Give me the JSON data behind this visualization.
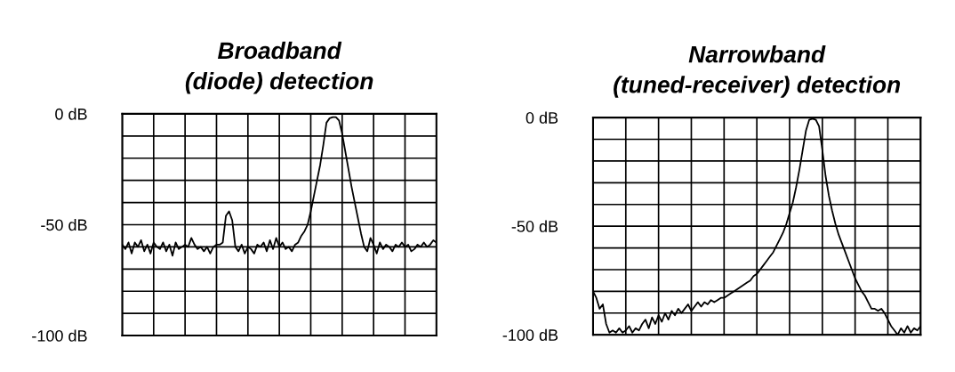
{
  "chart_data": [
    {
      "type": "line",
      "title": "Broadband\n(diode) detection",
      "categories": [
        null,
        null,
        null,
        null,
        null,
        null,
        null,
        null,
        null,
        null,
        null,
        null,
        null,
        null,
        null,
        null,
        null,
        null,
        null,
        null,
        null,
        null,
        null,
        null,
        null,
        null,
        null,
        null,
        null,
        null,
        null,
        null,
        null,
        null,
        null,
        null,
        null,
        null,
        null,
        null,
        null,
        null,
        null,
        null,
        null,
        null,
        null,
        null,
        null,
        null,
        null,
        null,
        null,
        null,
        null,
        null,
        null,
        null,
        null,
        null,
        null,
        null,
        null,
        null,
        null,
        null,
        null,
        null,
        null,
        null,
        null,
        null,
        null,
        null,
        null,
        null,
        null,
        null,
        null,
        null,
        null,
        null,
        null,
        null,
        null,
        null,
        null,
        null,
        null,
        null,
        null,
        null,
        null,
        null,
        null,
        null,
        null,
        null,
        null,
        null,
        null
      ],
      "series": [
        {
          "color": "#000000",
          "values": [
            -59,
            -61,
            -58,
            -63,
            -58,
            -60,
            -57,
            -62,
            -59,
            -63,
            -58,
            -60,
            -61,
            -58,
            -62,
            -59,
            -64,
            -58,
            -61,
            -60,
            -59,
            -60,
            -56,
            -59,
            -61,
            -60,
            -62,
            -60,
            -63,
            -60,
            -59,
            -59,
            -58,
            -46,
            -44,
            -48,
            -60,
            -62,
            -59,
            -63,
            -60,
            -61,
            -63,
            -59,
            -60,
            -58,
            -62,
            -57,
            -61,
            -56,
            -60,
            -58,
            -61,
            -60,
            -62,
            -59,
            -58,
            -55,
            -53,
            -50,
            -44,
            -37,
            -30,
            -23,
            -14,
            -4,
            -2,
            -1.5,
            -1.5,
            -3,
            -9,
            -17,
            -25,
            -33,
            -40,
            -47,
            -54,
            -60,
            -62,
            -56,
            -59,
            -63,
            -58,
            -61,
            -59,
            -60,
            -62,
            -59,
            -60,
            -58,
            -60,
            -59,
            -62,
            -61,
            -59,
            -60,
            -58,
            -60,
            -59,
            -57,
            -58
          ]
        }
      ],
      "ylim": [
        -100,
        0
      ],
      "yticks": [
        {
          "value": 0,
          "label": "0 dB"
        },
        {
          "value": -10,
          "label": null
        },
        {
          "value": -20,
          "label": null
        },
        {
          "value": -30,
          "label": null
        },
        {
          "value": -40,
          "label": null
        },
        {
          "value": -50,
          "label": "-50 dB"
        },
        {
          "value": -60,
          "label": null
        },
        {
          "value": -70,
          "label": null
        },
        {
          "value": -80,
          "label": null
        },
        {
          "value": -90,
          "label": null
        },
        {
          "value": -100,
          "label": "-100 dB"
        }
      ],
      "grid": true,
      "line_style": "solid"
    },
    {
      "type": "line",
      "title": "Narrowband\n(tuned-receiver) detection",
      "categories": [
        null,
        null,
        null,
        null,
        null,
        null,
        null,
        null,
        null,
        null,
        null,
        null,
        null,
        null,
        null,
        null,
        null,
        null,
        null,
        null,
        null,
        null,
        null,
        null,
        null,
        null,
        null,
        null,
        null,
        null,
        null,
        null,
        null,
        null,
        null,
        null,
        null,
        null,
        null,
        null,
        null,
        null,
        null,
        null,
        null,
        null,
        null,
        null,
        null,
        null,
        null,
        null,
        null,
        null,
        null,
        null,
        null,
        null,
        null,
        null,
        null,
        null,
        null,
        null,
        null,
        null,
        null,
        null,
        null,
        null,
        null,
        null,
        null,
        null,
        null,
        null,
        null,
        null,
        null,
        null,
        null,
        null,
        null,
        null,
        null,
        null,
        null,
        null,
        null,
        null,
        null,
        null,
        null,
        null,
        null,
        null,
        null,
        null,
        null,
        null,
        null
      ],
      "series": [
        {
          "color": "#000000",
          "values": [
            -80,
            -83,
            -88,
            -86,
            -95,
            -99,
            -98,
            -99,
            -97,
            -99,
            -98,
            -96,
            -99,
            -97,
            -98,
            -95,
            -93,
            -97,
            -92,
            -95,
            -91,
            -94,
            -90,
            -93,
            -89,
            -91,
            -88,
            -90,
            -88,
            -86,
            -89,
            -87,
            -85,
            -87,
            -85,
            -86,
            -84,
            -85,
            -84,
            -83,
            -83,
            -82,
            -81,
            -80,
            -79,
            -78,
            -77,
            -76,
            -75,
            -73,
            -72,
            -70,
            -68,
            -66,
            -64,
            -62,
            -59,
            -56,
            -53,
            -49,
            -44,
            -39,
            -32,
            -24,
            -15,
            -6,
            -1,
            -0.5,
            -1,
            -4,
            -15,
            -27,
            -36,
            -43,
            -49,
            -54,
            -58,
            -62,
            -66,
            -70,
            -74,
            -77,
            -80,
            -82,
            -85,
            -88,
            -88,
            -89,
            -88,
            -90,
            -93,
            -96,
            -98,
            -100,
            -97,
            -99,
            -96,
            -99,
            -97,
            -98,
            -96
          ]
        }
      ],
      "ylim": [
        -100,
        0
      ],
      "yticks": [
        {
          "value": 0,
          "label": "0 dB"
        },
        {
          "value": -10,
          "label": null
        },
        {
          "value": -20,
          "label": null
        },
        {
          "value": -30,
          "label": null
        },
        {
          "value": -40,
          "label": null
        },
        {
          "value": -50,
          "label": "-50 dB"
        },
        {
          "value": -60,
          "label": null
        },
        {
          "value": -70,
          "label": null
        },
        {
          "value": -80,
          "label": null
        },
        {
          "value": -90,
          "label": null
        },
        {
          "value": -100,
          "label": "-100 dB"
        }
      ],
      "grid": true,
      "line_style": "solid"
    }
  ]
}
